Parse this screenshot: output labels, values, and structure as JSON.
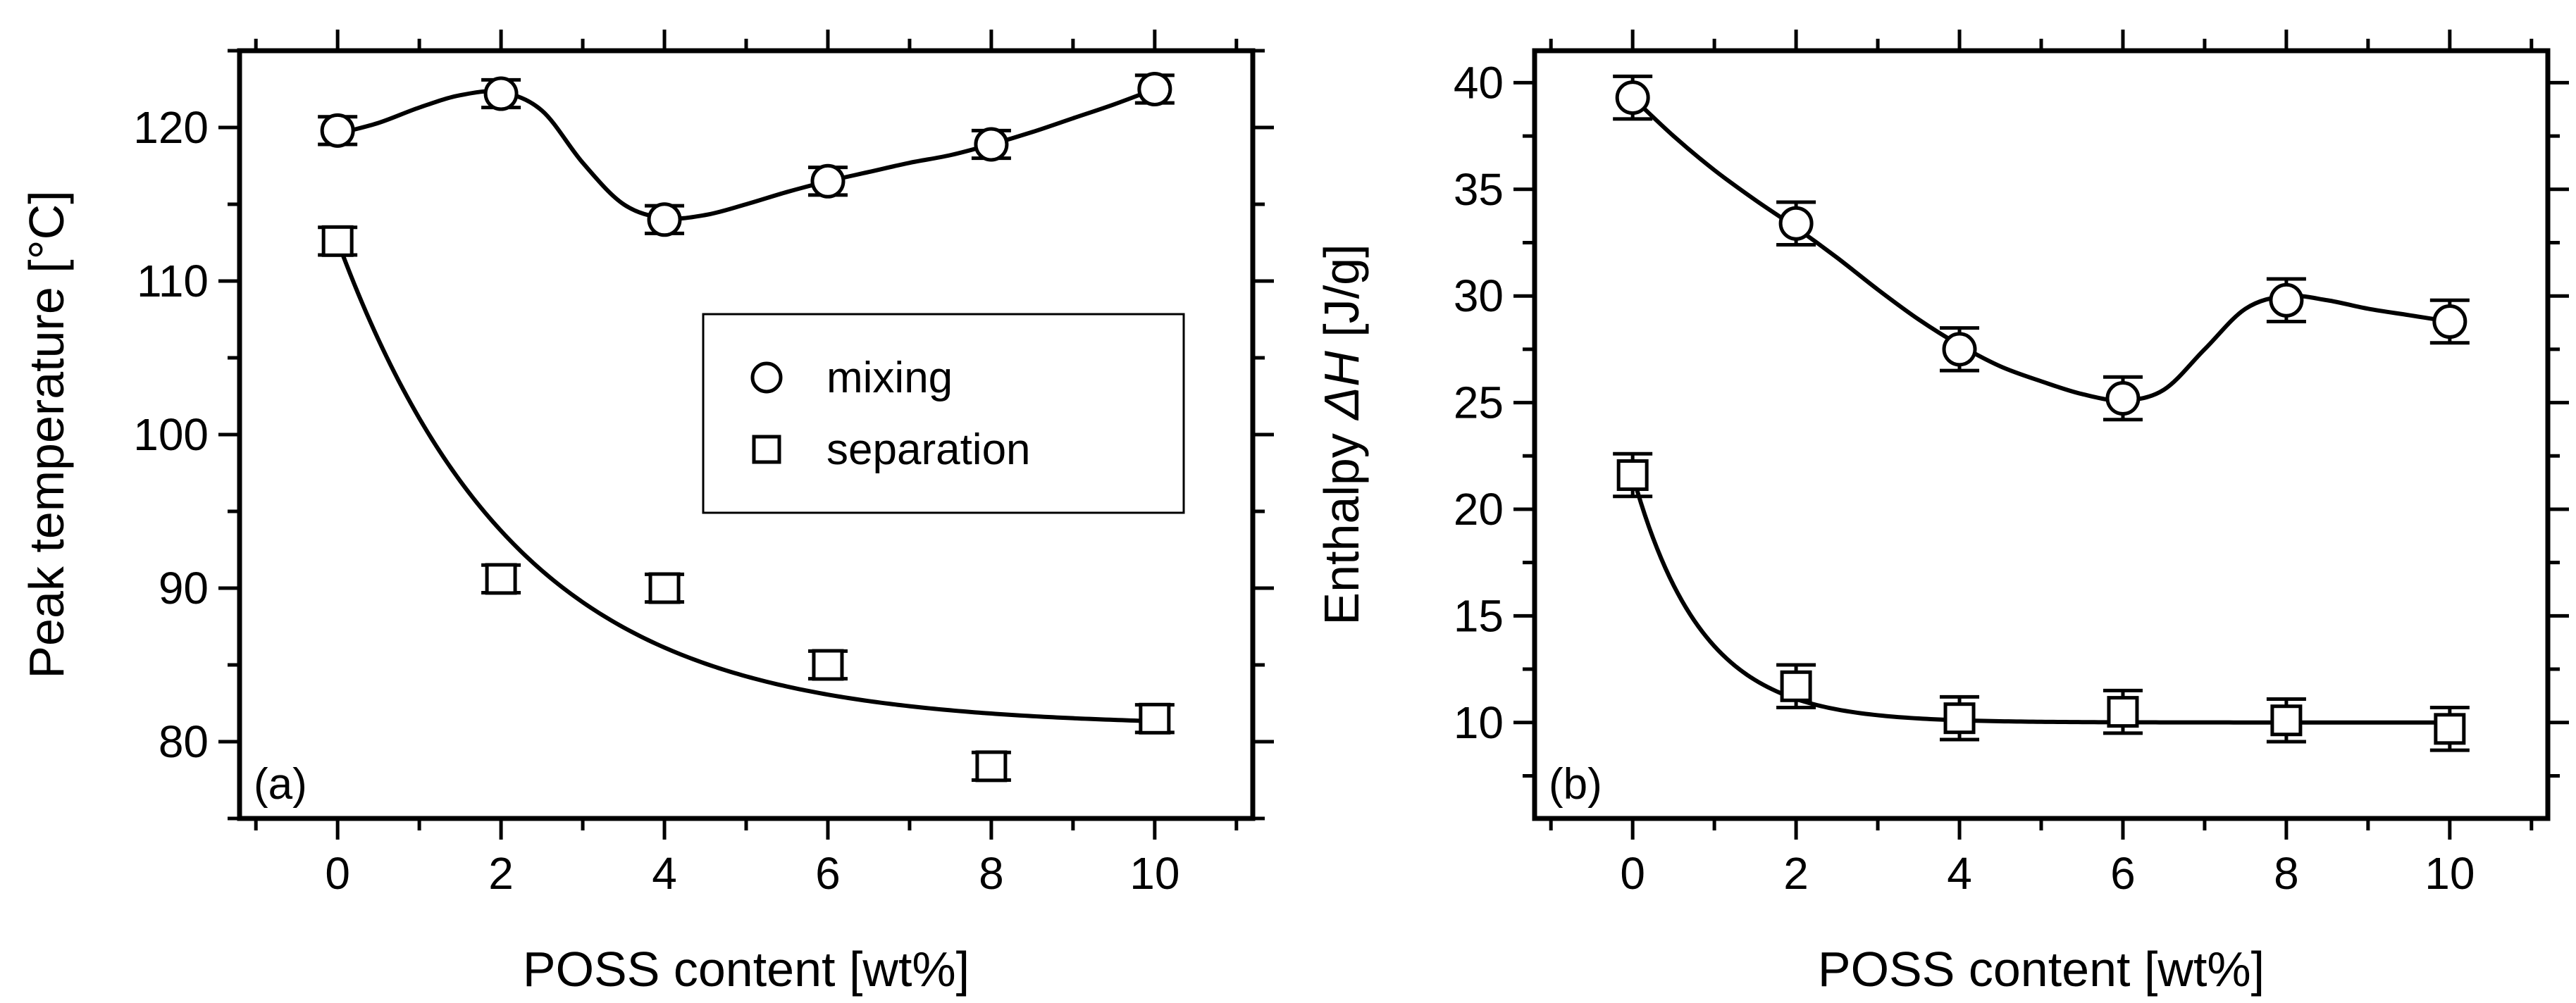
{
  "chart_data": [
    {
      "type": "scatter",
      "panel_label": "(a)",
      "xlabel": "POSS content [wt%]",
      "ylabel": "Peak temperature [°C]",
      "xlim": [
        -1.2,
        11.2
      ],
      "ylim": [
        75,
        125
      ],
      "xticks": [
        0,
        2,
        4,
        6,
        8,
        10
      ],
      "yticks": [
        80,
        90,
        100,
        110,
        120
      ],
      "legend": {
        "placement": "center-right",
        "entries": [
          {
            "marker": "circle",
            "label": "mixing"
          },
          {
            "marker": "square",
            "label": "separation"
          }
        ]
      },
      "series": [
        {
          "name": "mixing",
          "marker": "circle",
          "x": [
            0,
            2,
            4,
            6,
            8,
            10
          ],
          "y": [
            119.8,
            122.2,
            114.0,
            116.5,
            118.9,
            122.5
          ],
          "err": [
            0.9,
            0.9,
            0.9,
            0.9,
            0.9,
            0.9
          ],
          "fit": {
            "kind": "spline",
            "x": [
              0,
              0.5,
              1,
              1.5,
              2,
              2.5,
              3,
              3.5,
              4,
              4.5,
              5,
              5.5,
              6,
              6.5,
              7,
              7.5,
              8,
              8.5,
              9,
              9.5,
              10
            ],
            "y": [
              119.6,
              120.3,
              121.3,
              122.1,
              122.3,
              121.1,
              117.7,
              115.0,
              114.1,
              114.3,
              115.0,
              115.8,
              116.5,
              117.1,
              117.7,
              118.2,
              118.9,
              119.7,
              120.6,
              121.5,
              122.5
            ]
          }
        },
        {
          "name": "separation",
          "marker": "square",
          "x": [
            0,
            2,
            4,
            6,
            8,
            10
          ],
          "y": [
            112.6,
            90.6,
            90.0,
            85.0,
            78.4,
            81.5
          ],
          "err": [
            0.9,
            0.9,
            0.9,
            0.9,
            0.9,
            0.9
          ],
          "fit": {
            "kind": "exponential",
            "y0": 81.0,
            "A": 31.6,
            "tau": 2.2
          }
        }
      ]
    },
    {
      "type": "scatter",
      "panel_label": "(b)",
      "xlabel": "POSS content [wt%]",
      "ylabel_prefix": "Enthalpy ",
      "ylabel_symbol": "ΔH",
      "ylabel_suffix": " [J/g]",
      "xlim": [
        -1.2,
        11.2
      ],
      "ylim": [
        5.5,
        41.5
      ],
      "xticks": [
        0,
        2,
        4,
        6,
        8,
        10
      ],
      "yticks": [
        10,
        15,
        20,
        25,
        30,
        35,
        40
      ],
      "series": [
        {
          "name": "mixing",
          "marker": "circle",
          "x": [
            0,
            2,
            4,
            6,
            8,
            10
          ],
          "y": [
            39.3,
            33.4,
            27.5,
            25.2,
            29.8,
            28.8
          ],
          "err": [
            1.0,
            1.0,
            1.0,
            1.0,
            1.0,
            1.0
          ],
          "fit": {
            "kind": "spline",
            "x": [
              0,
              0.5,
              1,
              1.5,
              2,
              2.5,
              3,
              3.5,
              4,
              4.5,
              5,
              5.5,
              6,
              6.5,
              7,
              7.5,
              8,
              8.5,
              9,
              9.5,
              10
            ],
            "y": [
              39.3,
              37.5,
              35.9,
              34.5,
              33.2,
              31.8,
              30.3,
              28.9,
              27.7,
              26.7,
              26.0,
              25.4,
              25.1,
              25.6,
              27.5,
              29.4,
              30.0,
              29.8,
              29.4,
              29.1,
              28.8
            ]
          }
        },
        {
          "name": "separation",
          "marker": "square",
          "x": [
            0,
            2,
            4,
            6,
            8,
            10
          ],
          "y": [
            21.6,
            11.7,
            10.2,
            10.5,
            10.1,
            9.7
          ],
          "err": [
            1.0,
            1.0,
            1.0,
            1.0,
            1.0,
            1.0
          ],
          "fit": {
            "kind": "exponential",
            "y0": 10.0,
            "A": 11.6,
            "tau": 0.85
          }
        }
      ]
    }
  ]
}
